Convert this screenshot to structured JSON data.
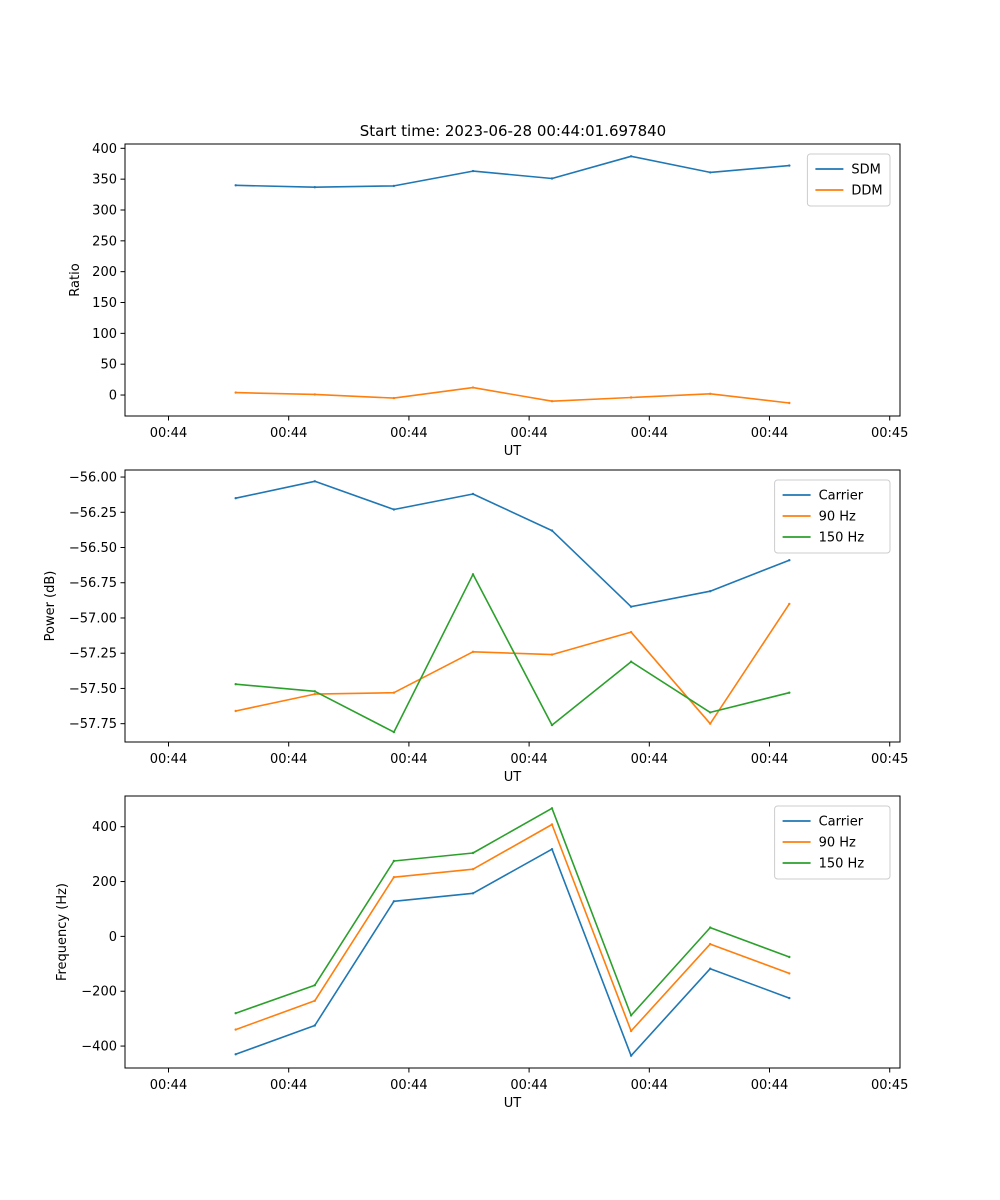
{
  "figure_title": "Start time: 2023-06-28 00:44:01.697840",
  "colors": {
    "blue": "#1f77b4",
    "orange": "#ff7f0e",
    "green": "#2ca02c"
  },
  "chart_data": [
    {
      "type": "line",
      "xlabel": "UT",
      "ylabel": "Ratio",
      "x": [
        1,
        2,
        3,
        4,
        5,
        6,
        7,
        8
      ],
      "x_tick_positions": [
        0.15,
        1.67,
        3.19,
        4.71,
        6.23,
        7.75,
        9.27
      ],
      "x_tick_labels": [
        "00:44",
        "00:44",
        "00:44",
        "00:44",
        "00:44",
        "00:44",
        "00:45"
      ],
      "xlim": [
        -0.4,
        9.4
      ],
      "ylim": [
        -34,
        407
      ],
      "y_ticks": [
        0,
        50,
        100,
        150,
        200,
        250,
        300,
        350,
        400
      ],
      "y_tick_labels": [
        "0",
        "50",
        "100",
        "150",
        "200",
        "250",
        "300",
        "350",
        "400"
      ],
      "legend_position": "top-right",
      "series": [
        {
          "name": "SDM",
          "color": "#1f77b4",
          "values": [
            340,
            337,
            339,
            363,
            351,
            387,
            361,
            372
          ]
        },
        {
          "name": "DDM",
          "color": "#ff7f0e",
          "values": [
            4,
            1,
            -5,
            12,
            -10,
            -4,
            2,
            -13
          ]
        }
      ]
    },
    {
      "type": "line",
      "xlabel": "UT",
      "ylabel": "Power (dB)",
      "x": [
        1,
        2,
        3,
        4,
        5,
        6,
        7,
        8
      ],
      "x_tick_positions": [
        0.15,
        1.67,
        3.19,
        4.71,
        6.23,
        7.75,
        9.27
      ],
      "x_tick_labels": [
        "00:44",
        "00:44",
        "00:44",
        "00:44",
        "00:44",
        "00:44",
        "00:45"
      ],
      "xlim": [
        -0.4,
        9.4
      ],
      "ylim": [
        -57.88,
        -55.95
      ],
      "y_ticks": [
        -57.75,
        -57.5,
        -57.25,
        -57.0,
        -56.75,
        -56.5,
        -56.25,
        -56.0
      ],
      "y_tick_labels": [
        "−57.75",
        "−57.50",
        "−57.25",
        "−57.00",
        "−56.75",
        "−56.50",
        "−56.25",
        "−56.00"
      ],
      "legend_position": "top-right",
      "series": [
        {
          "name": "Carrier",
          "color": "#1f77b4",
          "values": [
            -56.15,
            -56.03,
            -56.23,
            -56.12,
            -56.38,
            -56.92,
            -56.81,
            -56.59
          ]
        },
        {
          "name": "90 Hz",
          "color": "#ff7f0e",
          "values": [
            -57.66,
            -57.54,
            -57.53,
            -57.24,
            -57.26,
            -57.1,
            -57.75,
            -56.9
          ]
        },
        {
          "name": "150 Hz",
          "color": "#2ca02c",
          "values": [
            -57.47,
            -57.52,
            -57.81,
            -56.69,
            -57.76,
            -57.31,
            -57.67,
            -57.53
          ]
        }
      ]
    },
    {
      "type": "line",
      "xlabel": "UT",
      "ylabel": "Frequency (Hz)",
      "x": [
        1,
        2,
        3,
        4,
        5,
        6,
        7,
        8
      ],
      "x_tick_positions": [
        0.15,
        1.67,
        3.19,
        4.71,
        6.23,
        7.75,
        9.27
      ],
      "x_tick_labels": [
        "00:44",
        "00:44",
        "00:44",
        "00:44",
        "00:44",
        "00:44",
        "00:45"
      ],
      "xlim": [
        -0.4,
        9.4
      ],
      "ylim": [
        -480,
        512
      ],
      "y_ticks": [
        -400,
        -200,
        0,
        200,
        400
      ],
      "y_tick_labels": [
        "−400",
        "−200",
        "0",
        "200",
        "400"
      ],
      "legend_position": "top-right",
      "series": [
        {
          "name": "Carrier",
          "color": "#1f77b4",
          "values": [
            -430,
            -325,
            128,
            157,
            318,
            -435,
            -118,
            -225
          ]
        },
        {
          "name": "90 Hz",
          "color": "#ff7f0e",
          "values": [
            -340,
            -235,
            216,
            245,
            408,
            -345,
            -28,
            -135
          ]
        },
        {
          "name": "150 Hz",
          "color": "#2ca02c",
          "values": [
            -280,
            -178,
            275,
            304,
            467,
            -288,
            32,
            -75
          ]
        }
      ]
    }
  ]
}
